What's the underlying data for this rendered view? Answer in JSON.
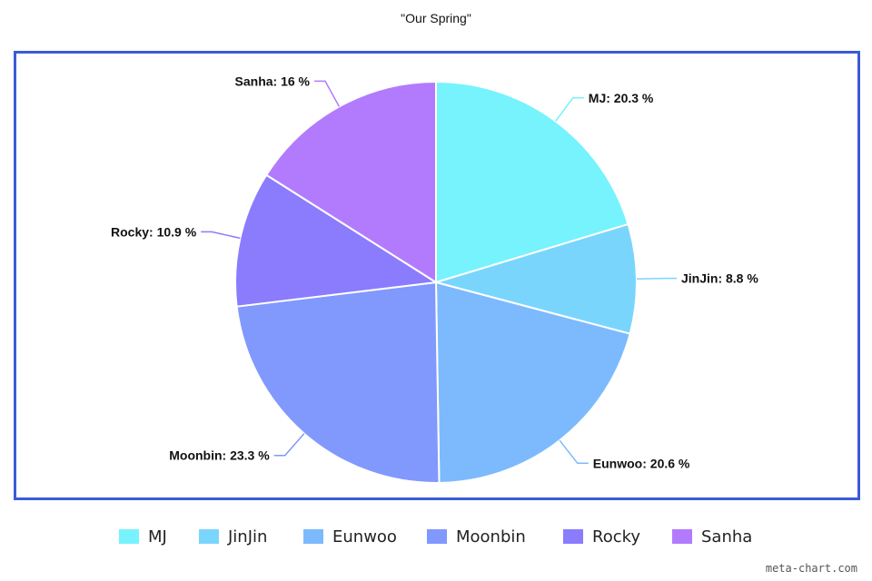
{
  "chart_data": {
    "type": "pie",
    "title": "\"Our Spring\"",
    "categories": [
      "MJ",
      "JinJin",
      "Eunwoo",
      "Moonbin",
      "Rocky",
      "Sanha"
    ],
    "values": [
      20.3,
      8.8,
      20.6,
      23.3,
      10.9,
      16
    ],
    "slice_labels": [
      "MJ: 20.3 %",
      "JinJin: 8.8 %",
      "Eunwoo: 20.6 %",
      "Moonbin: 23.3 %",
      "Rocky: 10.9 %",
      "Sanha: 16 %"
    ],
    "colors": [
      "#76f3fd",
      "#7ad5fd",
      "#7dbafd",
      "#8198fd",
      "#8a7cfd",
      "#b27bfd"
    ],
    "start_angle": "12 o'clock",
    "direction": "clockwise",
    "legend_position": "bottom",
    "frame_color": "#3a5bd9"
  },
  "credit": "meta-chart.com"
}
